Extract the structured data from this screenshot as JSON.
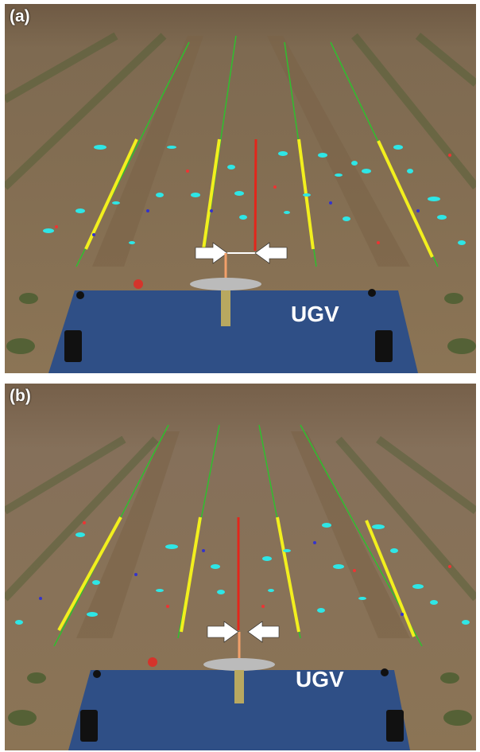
{
  "panels": [
    {
      "label": "(a)",
      "vehicle_label": "UGV"
    },
    {
      "label": "(b)",
      "vehicle_label": "UGV"
    }
  ],
  "colors": {
    "soil": "#8a7353",
    "vehicle": "#2f4f86",
    "crop_row_line": "#2fbf2f",
    "detected_row_segment": "#f2ef1e",
    "center_line": "#e3261b",
    "vehicle_heading": "#f2a06a",
    "weed_blobs": "#2ee6e6",
    "arrows": "#ffffff"
  }
}
